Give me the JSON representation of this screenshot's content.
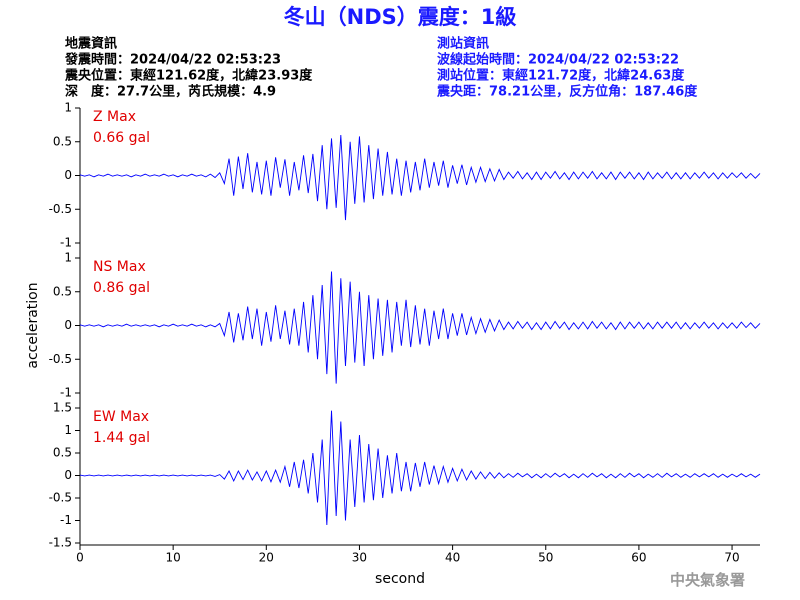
{
  "header": {
    "title": "冬山（NDS）震度：1級",
    "left": [
      "地震資訊",
      "發震時間：2024/04/22 02:53:23",
      "震央位置：東經121.62度，北緯23.93度",
      "深　度：27.7公里，芮氏規模：4.9"
    ],
    "right": [
      "測站資訊",
      "波線起始時間：2024/04/22 02:53:22",
      "測站位置：東經121.72度，北緯24.63度",
      "震央距：78.21公里，反方位角：187.46度"
    ]
  },
  "footer": "中央氣象署",
  "chart_data": [
    {
      "type": "line",
      "label": "Z Max",
      "max_label": "0.66 gal",
      "color": "#0000ff",
      "xlim": [
        0,
        73
      ],
      "ylim": [
        -1,
        1
      ],
      "yticks": [
        -1,
        -0.5,
        0,
        0.5,
        1
      ],
      "x": [
        0,
        0.5,
        1,
        1.5,
        2,
        2.5,
        3,
        3.5,
        4,
        4.5,
        5,
        5.5,
        6,
        6.5,
        7,
        7.5,
        8,
        8.5,
        9,
        9.5,
        10,
        10.5,
        11,
        11.5,
        12,
        12.5,
        13,
        13.5,
        14,
        14.5,
        15,
        15.5,
        16,
        16.5,
        17,
        17.5,
        18,
        18.5,
        19,
        19.5,
        20,
        20.5,
        21,
        21.5,
        22,
        22.5,
        23,
        23.5,
        24,
        24.5,
        25,
        25.5,
        26,
        26.5,
        27,
        27.5,
        28,
        28.5,
        29,
        29.5,
        30,
        30.5,
        31,
        31.5,
        32,
        32.5,
        33,
        33.5,
        34,
        34.5,
        35,
        35.5,
        36,
        36.5,
        37,
        37.5,
        38,
        38.5,
        39,
        39.5,
        40,
        40.5,
        41,
        41.5,
        42,
        42.5,
        43,
        43.5,
        44,
        44.5,
        45,
        45.5,
        46,
        46.5,
        47,
        47.5,
        48,
        48.5,
        49,
        49.5,
        50,
        50.5,
        51,
        51.5,
        52,
        52.5,
        53,
        53.5,
        54,
        54.5,
        55,
        55.5,
        56,
        56.5,
        57,
        57.5,
        58,
        58.5,
        59,
        59.5,
        60,
        60.5,
        61,
        61.5,
        62,
        62.5,
        63,
        63.5,
        64,
        64.5,
        65,
        65.5,
        66,
        66.5,
        67,
        67.5,
        68,
        68.5,
        69,
        69.5,
        70,
        70.5,
        71,
        71.5,
        72,
        72.5,
        73
      ],
      "values": [
        0.01,
        -0.01,
        0.01,
        -0.02,
        0.01,
        -0.01,
        0.02,
        -0.01,
        0.01,
        -0.01,
        0.01,
        -0.02,
        0.01,
        -0.01,
        0.02,
        -0.01,
        0.01,
        -0.01,
        0.02,
        -0.01,
        0.01,
        -0.02,
        0.01,
        -0.01,
        0.02,
        -0.01,
        0.01,
        -0.02,
        0.02,
        -0.03,
        0.04,
        -0.12,
        0.25,
        -0.3,
        0.28,
        -0.2,
        0.33,
        -0.25,
        0.2,
        -0.28,
        0.22,
        -0.3,
        0.27,
        -0.18,
        0.24,
        -0.3,
        0.2,
        -0.22,
        0.3,
        -0.26,
        0.32,
        -0.38,
        0.45,
        -0.5,
        0.55,
        -0.48,
        0.6,
        -0.66,
        0.5,
        -0.42,
        0.58,
        -0.4,
        0.45,
        -0.35,
        0.4,
        -0.3,
        0.35,
        -0.28,
        0.25,
        -0.3,
        0.22,
        -0.25,
        0.2,
        -0.22,
        0.25,
        -0.18,
        0.2,
        -0.15,
        0.22,
        -0.18,
        0.15,
        -0.12,
        0.16,
        -0.14,
        0.12,
        -0.1,
        0.12,
        -0.09,
        0.1,
        -0.08,
        0.09,
        -0.06,
        0.05,
        -0.04,
        0.06,
        -0.05,
        0.04,
        -0.06,
        0.05,
        -0.06,
        0.05,
        -0.04,
        0.06,
        -0.05,
        0.04,
        -0.06,
        0.05,
        -0.05,
        0.05,
        -0.04,
        0.06,
        -0.05,
        0.04,
        -0.05,
        0.05,
        -0.06,
        0.05,
        -0.04,
        0.05,
        -0.05,
        0.04,
        -0.06,
        0.05,
        -0.05,
        0.04,
        -0.04,
        0.05,
        -0.05,
        0.04,
        -0.05,
        0.04,
        -0.05,
        0.04,
        -0.04,
        0.05,
        -0.04,
        0.04,
        -0.05,
        0.04,
        -0.04,
        0.04,
        -0.03,
        0.04,
        -0.04,
        0.03,
        -0.04,
        0.03
      ]
    },
    {
      "type": "line",
      "label": "NS Max",
      "max_label": "0.86 gal",
      "color": "#0000ff",
      "ylabel": "acceleration",
      "xlim": [
        0,
        73
      ],
      "ylim": [
        -1,
        1
      ],
      "yticks": [
        -1,
        -0.5,
        0,
        0.5,
        1
      ],
      "x": [
        0,
        0.5,
        1,
        1.5,
        2,
        2.5,
        3,
        3.5,
        4,
        4.5,
        5,
        5.5,
        6,
        6.5,
        7,
        7.5,
        8,
        8.5,
        9,
        9.5,
        10,
        10.5,
        11,
        11.5,
        12,
        12.5,
        13,
        13.5,
        14,
        14.5,
        15,
        15.5,
        16,
        16.5,
        17,
        17.5,
        18,
        18.5,
        19,
        19.5,
        20,
        20.5,
        21,
        21.5,
        22,
        22.5,
        23,
        23.5,
        24,
        24.5,
        25,
        25.5,
        26,
        26.5,
        27,
        27.5,
        28,
        28.5,
        29,
        29.5,
        30,
        30.5,
        31,
        31.5,
        32,
        32.5,
        33,
        33.5,
        34,
        34.5,
        35,
        35.5,
        36,
        36.5,
        37,
        37.5,
        38,
        38.5,
        39,
        39.5,
        40,
        40.5,
        41,
        41.5,
        42,
        42.5,
        43,
        43.5,
        44,
        44.5,
        45,
        45.5,
        46,
        46.5,
        47,
        47.5,
        48,
        48.5,
        49,
        49.5,
        50,
        50.5,
        51,
        51.5,
        52,
        52.5,
        53,
        53.5,
        54,
        54.5,
        55,
        55.5,
        56,
        56.5,
        57,
        57.5,
        58,
        58.5,
        59,
        59.5,
        60,
        60.5,
        61,
        61.5,
        62,
        62.5,
        63,
        63.5,
        64,
        64.5,
        65,
        65.5,
        66,
        66.5,
        67,
        67.5,
        68,
        68.5,
        69,
        69.5,
        70,
        70.5,
        71,
        71.5,
        72,
        72.5,
        73
      ],
      "values": [
        0.01,
        -0.01,
        0.01,
        -0.01,
        0.01,
        -0.02,
        0.01,
        -0.01,
        0.01,
        -0.01,
        0.02,
        -0.01,
        0.01,
        -0.01,
        0.01,
        -0.01,
        0.01,
        -0.02,
        0.01,
        -0.01,
        0.02,
        -0.01,
        0.01,
        -0.01,
        0.02,
        -0.01,
        0.01,
        -0.02,
        0.01,
        -0.02,
        0.03,
        -0.15,
        0.2,
        -0.25,
        0.18,
        -0.22,
        0.28,
        -0.2,
        0.25,
        -0.3,
        0.2,
        -0.24,
        0.3,
        -0.2,
        0.22,
        -0.28,
        0.25,
        -0.3,
        0.35,
        -0.4,
        0.45,
        -0.5,
        0.6,
        -0.72,
        0.8,
        -0.86,
        0.7,
        -0.6,
        0.65,
        -0.55,
        0.5,
        -0.6,
        0.45,
        -0.5,
        0.4,
        -0.45,
        0.38,
        -0.4,
        0.35,
        -0.3,
        0.38,
        -0.32,
        0.3,
        -0.28,
        0.25,
        -0.3,
        0.22,
        -0.2,
        0.25,
        -0.2,
        0.18,
        -0.15,
        0.18,
        -0.14,
        0.12,
        -0.12,
        0.1,
        -0.1,
        0.09,
        -0.08,
        0.08,
        -0.06,
        0.05,
        -0.05,
        0.06,
        -0.04,
        0.05,
        -0.06,
        0.04,
        -0.06,
        0.05,
        -0.05,
        0.06,
        -0.04,
        0.05,
        -0.06,
        0.04,
        -0.05,
        0.05,
        -0.05,
        0.06,
        -0.04,
        0.05,
        -0.05,
        0.04,
        -0.06,
        0.05,
        -0.05,
        0.05,
        -0.04,
        0.05,
        -0.05,
        0.04,
        -0.05,
        0.05,
        -0.04,
        0.05,
        -0.04,
        0.05,
        -0.05,
        0.04,
        -0.05,
        0.04,
        -0.04,
        0.05,
        -0.04,
        0.04,
        -0.05,
        0.04,
        -0.04,
        0.04,
        -0.04,
        0.05,
        -0.03,
        0.04,
        -0.04,
        0.03
      ]
    },
    {
      "type": "line",
      "label": "EW Max",
      "max_label": "1.44 gal",
      "color": "#0000ff",
      "xlabel": "second",
      "xlim": [
        0,
        73
      ],
      "xticks": [
        0,
        10,
        20,
        30,
        40,
        50,
        60,
        70
      ],
      "ylim": [
        -1.5,
        1.5
      ],
      "yticks": [
        -1.5,
        -1,
        -0.5,
        0,
        0.5,
        1,
        1.5
      ],
      "x": [
        0,
        0.5,
        1,
        1.5,
        2,
        2.5,
        3,
        3.5,
        4,
        4.5,
        5,
        5.5,
        6,
        6.5,
        7,
        7.5,
        8,
        8.5,
        9,
        9.5,
        10,
        10.5,
        11,
        11.5,
        12,
        12.5,
        13,
        13.5,
        14,
        14.5,
        15,
        15.5,
        16,
        16.5,
        17,
        17.5,
        18,
        18.5,
        19,
        19.5,
        20,
        20.5,
        21,
        21.5,
        22,
        22.5,
        23,
        23.5,
        24,
        24.5,
        25,
        25.5,
        26,
        26.5,
        27,
        27.5,
        28,
        28.5,
        29,
        29.5,
        30,
        30.5,
        31,
        31.5,
        32,
        32.5,
        33,
        33.5,
        34,
        34.5,
        35,
        35.5,
        36,
        36.5,
        37,
        37.5,
        38,
        38.5,
        39,
        39.5,
        40,
        40.5,
        41,
        41.5,
        42,
        42.5,
        43,
        43.5,
        44,
        44.5,
        45,
        45.5,
        46,
        46.5,
        47,
        47.5,
        48,
        48.5,
        49,
        49.5,
        50,
        50.5,
        51,
        51.5,
        52,
        52.5,
        53,
        53.5,
        54,
        54.5,
        55,
        55.5,
        56,
        56.5,
        57,
        57.5,
        58,
        58.5,
        59,
        59.5,
        60,
        60.5,
        61,
        61.5,
        62,
        62.5,
        63,
        63.5,
        64,
        64.5,
        65,
        65.5,
        66,
        66.5,
        67,
        67.5,
        68,
        68.5,
        69,
        69.5,
        70,
        70.5,
        71,
        71.5,
        72,
        72.5,
        73
      ],
      "values": [
        0.01,
        -0.01,
        0.01,
        -0.01,
        0.01,
        -0.01,
        0.01,
        -0.01,
        0.01,
        -0.01,
        0.01,
        -0.01,
        0.01,
        -0.01,
        0.01,
        -0.01,
        0.01,
        -0.01,
        0.01,
        -0.01,
        0.01,
        -0.01,
        0.01,
        -0.01,
        0.01,
        -0.01,
        0.01,
        -0.01,
        0.01,
        -0.02,
        0.02,
        -0.08,
        0.1,
        -0.12,
        0.1,
        -0.09,
        0.12,
        -0.1,
        0.08,
        -0.12,
        0.1,
        -0.14,
        0.12,
        -0.15,
        0.2,
        -0.25,
        0.3,
        -0.28,
        0.35,
        -0.4,
        0.5,
        -0.6,
        0.8,
        -1.1,
        1.44,
        -0.9,
        1.2,
        -1.0,
        0.8,
        -0.7,
        0.9,
        -0.6,
        0.7,
        -0.55,
        0.6,
        -0.5,
        0.45,
        -0.4,
        0.5,
        -0.35,
        0.3,
        -0.35,
        0.28,
        -0.25,
        0.3,
        -0.2,
        0.22,
        -0.18,
        0.2,
        -0.15,
        0.16,
        -0.12,
        0.14,
        -0.1,
        0.1,
        -0.08,
        0.08,
        -0.07,
        0.07,
        -0.06,
        0.06,
        -0.05,
        0.04,
        -0.04,
        0.05,
        -0.03,
        0.04,
        -0.05,
        0.03,
        -0.05,
        0.04,
        -0.04,
        0.05,
        -0.03,
        0.04,
        -0.05,
        0.03,
        -0.05,
        0.04,
        -0.04,
        0.05,
        -0.03,
        0.04,
        -0.05,
        0.03,
        -0.05,
        0.04,
        -0.04,
        0.05,
        -0.03,
        0.04,
        -0.05,
        0.03,
        -0.04,
        0.04,
        -0.04,
        0.05,
        -0.03,
        0.04,
        -0.04,
        0.03,
        -0.04,
        0.04,
        -0.03,
        0.04,
        -0.03,
        0.04,
        -0.04,
        0.03,
        -0.04,
        0.03,
        -0.03,
        0.04,
        -0.03,
        0.03,
        -0.04,
        0.03
      ]
    }
  ]
}
